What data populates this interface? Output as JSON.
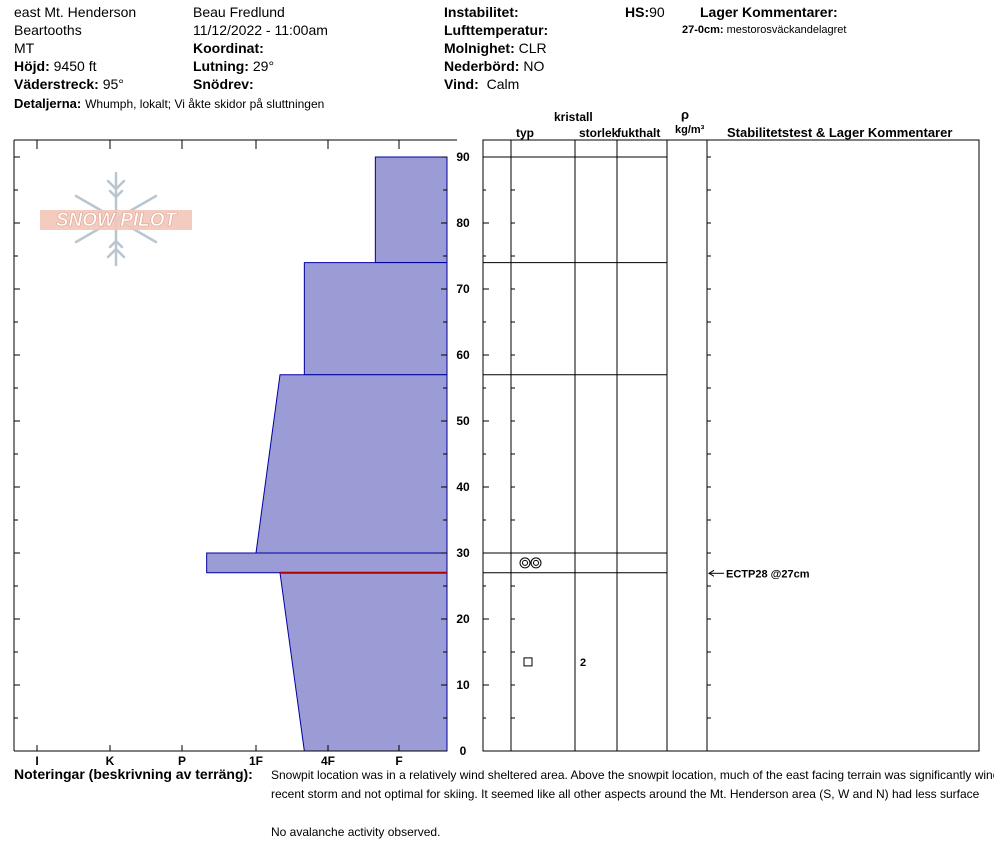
{
  "header": {
    "location": "east Mt. Henderson",
    "range": "Beartooths",
    "state": "MT",
    "elevation_label": "Höjd:",
    "elevation_value": "9450 ft",
    "aspect_label": "Väderstreck:",
    "aspect_value": "95°",
    "details_label": "Detaljerna:",
    "details_value": "Whumph, lokalt;  Vi åkte skidor på sluttningen",
    "observer": "Beau  Fredlund",
    "datetime": "11/12/2022 - 11:00am",
    "coord_label": "Koordinat:",
    "coord_value": "",
    "slope_label": "Lutning:",
    "slope_value": "29°",
    "wind_loading_label": "Snödrev:",
    "wind_loading_value": "",
    "instability_label": "Instabilitet:",
    "instability_value": "",
    "air_temp_label": "Lufttemperatur:",
    "air_temp_value": "",
    "sky_label": "Molnighet:",
    "sky_value": "CLR",
    "precip_label": "Nederbörd:",
    "precip_value": "NO",
    "wind_label": "Vind:",
    "wind_value": "Calm",
    "hs_label": "HS:",
    "hs_value": "90",
    "layer_comments_label": "Lager Kommentarer:",
    "layer_comment_depth": "27-0cm:",
    "layer_comment_text": "mestorosväckandelagret"
  },
  "logo": {
    "text": "SNOW PILOT",
    "icon": "snowflake-icon"
  },
  "columns": {
    "crystal": "kristall",
    "type": "typ",
    "size": "storlek",
    "moisture": "fukthalt",
    "density_symbol": "ρ",
    "density_unit": "kg/m³",
    "stability_header": "Stabilitetstest & Lager Kommentarer"
  },
  "notes": {
    "label": "Noteringar (beskrivning av terräng):",
    "lines": [
      "Snowpit location was in a relatively wind sheltered area.  Above the snowpit location, much of the east facing terrain was significantly wind",
      "recent storm and not optimal for skiing.  It seemed like all other aspects around the Mt. Henderson area (S, W and N) had less surface",
      "",
      "No avalanche activity observed."
    ]
  },
  "chart_data": {
    "type": "snow-profile",
    "y_axis": {
      "min": 0,
      "max": 90,
      "ticks": [
        0,
        10,
        20,
        30,
        40,
        50,
        60,
        70,
        80,
        90
      ]
    },
    "hardness_scale": [
      "I",
      "K",
      "P",
      "1F",
      "4F",
      "F"
    ],
    "hardness_profile": [
      {
        "top": 90,
        "bottom": 74,
        "hardness_top": "F-",
        "hardness_bottom": "F-"
      },
      {
        "top": 74,
        "bottom": 57,
        "hardness_top": "4F-",
        "hardness_bottom": "4F-"
      },
      {
        "top": 57,
        "bottom": 30,
        "hardness_top": "1F+",
        "hardness_bottom": "1F"
      },
      {
        "top": 30,
        "bottom": 27,
        "hardness_top": "P+",
        "hardness_bottom": "P+"
      },
      {
        "top": 27,
        "bottom": 0,
        "hardness_top": "1F+",
        "hardness_bottom": "4F-"
      }
    ],
    "layer_boundaries": [
      90,
      74,
      57,
      30,
      27
    ],
    "crystals": [
      {
        "depth": 28.5,
        "symbol": "surface-hoar",
        "size": ""
      },
      {
        "depth": 13.5,
        "symbol": "faceted",
        "size": "2"
      }
    ],
    "weak_layer_depth": 27,
    "stability_tests": [
      {
        "depth": 27,
        "text": "ECTP28 @27cm"
      }
    ],
    "colors": {
      "fill": "#9b9bd6",
      "outline": "#0000a0",
      "weak_layer": "#b00000"
    }
  }
}
